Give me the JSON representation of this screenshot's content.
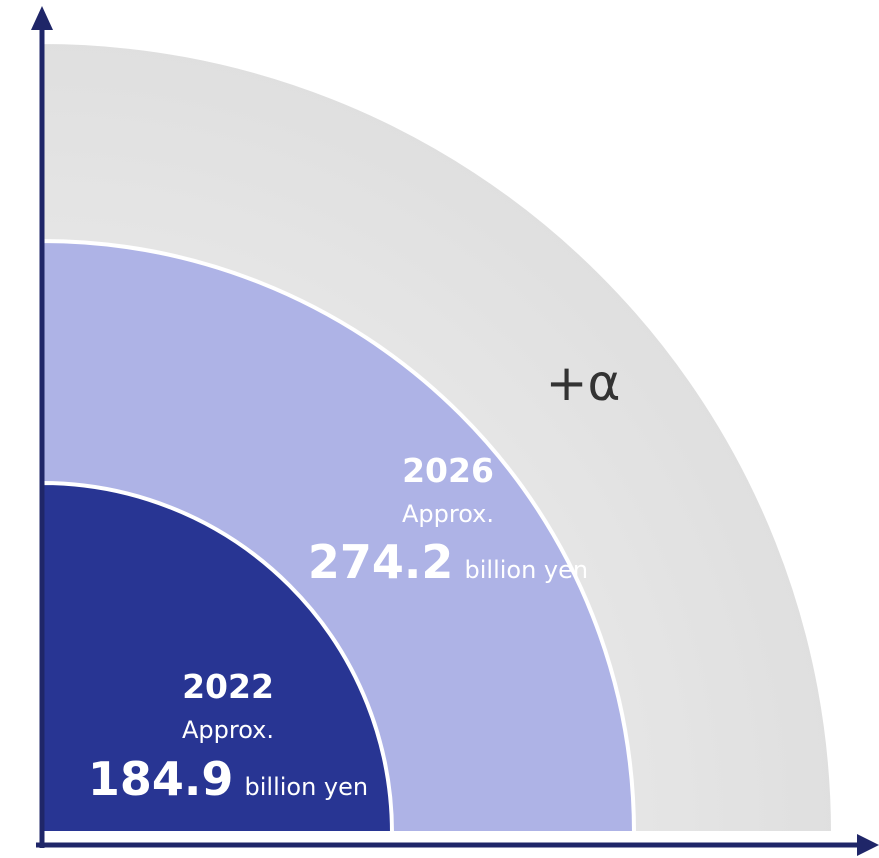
{
  "diagram": {
    "segments": [
      {
        "year": "2022",
        "approx": "Approx.",
        "value": "184.9",
        "unit": "billion yen",
        "color": "#283593",
        "text_color": "#ffffff"
      },
      {
        "year": "2026",
        "approx": "Approx.",
        "value": "274.2",
        "unit": "billion yen",
        "color": "#aeb3e6",
        "text_color": "#ffffff"
      }
    ],
    "outer_band": {
      "label": "+α",
      "color": "#e6e6e6",
      "text_color": "#333333"
    },
    "axis_color": "#1f2668"
  }
}
